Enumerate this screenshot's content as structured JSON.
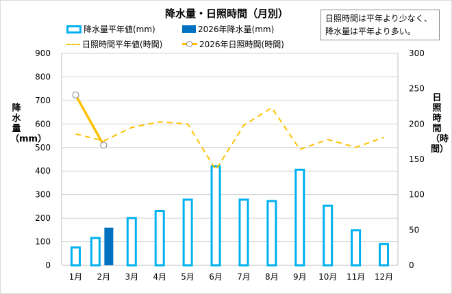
{
  "chart_data": {
    "type": "bar+line",
    "title": "降水量・日照時間（月別）",
    "note": [
      "日照時間は平年より少なく、",
      "降水量は平年より多い。"
    ],
    "categories": [
      "1月",
      "2月",
      "3月",
      "4月",
      "5月",
      "6月",
      "7月",
      "8月",
      "9月",
      "10月",
      "11月",
      "12月"
    ],
    "y_left": {
      "label": "降水量（mm）",
      "range": [
        0,
        900
      ],
      "ticks": [
        0,
        100,
        200,
        300,
        400,
        500,
        600,
        700,
        800,
        900
      ]
    },
    "y_right": {
      "label": "日照時間（時間）",
      "range": [
        0,
        300
      ],
      "ticks": [
        0,
        50,
        100,
        150,
        200,
        250,
        300
      ]
    },
    "grid": true,
    "legend_position": "top",
    "series": [
      {
        "name": "降水量平年値(mm)",
        "type": "bar",
        "axis": "left",
        "style": "outline",
        "color": "#00b0f0",
        "values": [
          80,
          120,
          205,
          235,
          283,
          425,
          283,
          277,
          410,
          257,
          153,
          95
        ]
      },
      {
        "name": "2026年降水量(mm)",
        "type": "bar",
        "axis": "left",
        "style": "filled",
        "color": "#0070c0",
        "values": [
          null,
          160,
          null,
          null,
          null,
          null,
          null,
          null,
          null,
          null,
          null,
          null
        ]
      },
      {
        "name": "日照時間平年値(時間)",
        "type": "line",
        "axis": "right",
        "style": "dashed",
        "color": "#ffc000",
        "values": [
          186,
          176,
          195,
          203,
          200,
          135,
          198,
          223,
          164,
          178,
          167,
          181
        ]
      },
      {
        "name": "2026年日照時間(時間)",
        "type": "line",
        "axis": "right",
        "style": "solid-marker",
        "color": "#ffc000",
        "values": [
          241,
          170,
          null,
          null,
          null,
          null,
          null,
          null,
          null,
          null,
          null,
          null
        ]
      }
    ]
  }
}
